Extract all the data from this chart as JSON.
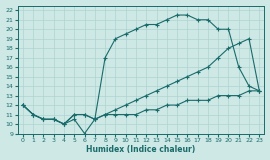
{
  "xlabel": "Humidex (Indice chaleur)",
  "bg_color": "#cde8e5",
  "line_color": "#1a6b6b",
  "grid_color": "#aed4d0",
  "xlim": [
    -0.5,
    23.5
  ],
  "ylim": [
    9,
    22.5
  ],
  "xticks": [
    0,
    1,
    2,
    3,
    4,
    5,
    6,
    7,
    8,
    9,
    10,
    11,
    12,
    13,
    14,
    15,
    16,
    17,
    18,
    19,
    20,
    21,
    22,
    23
  ],
  "yticks": [
    9,
    10,
    11,
    12,
    13,
    14,
    15,
    16,
    17,
    18,
    19,
    20,
    21,
    22
  ],
  "line1_x": [
    0,
    1,
    2,
    3,
    4,
    5,
    6,
    7,
    8,
    9,
    10,
    11,
    12,
    13,
    14,
    15,
    16,
    17,
    18,
    19,
    20,
    21,
    22,
    23
  ],
  "line1_y": [
    12,
    11,
    10.5,
    10.5,
    10,
    10.5,
    9,
    10.5,
    11,
    11.5,
    12,
    12.5,
    13,
    13.5,
    14,
    14.5,
    15,
    15.5,
    16,
    17,
    18,
    18.5,
    19,
    13.5
  ],
  "line2_x": [
    0,
    1,
    2,
    3,
    4,
    5,
    6,
    7,
    8,
    9,
    10,
    11,
    12,
    13,
    14,
    15,
    16,
    17,
    18,
    19,
    20,
    21,
    22,
    23
  ],
  "line2_y": [
    12,
    11,
    10.5,
    10.5,
    10,
    11,
    11,
    10.5,
    17,
    19,
    19.5,
    20,
    20.5,
    20.5,
    21,
    21.5,
    21.5,
    21,
    21,
    20,
    20,
    16,
    14,
    13.5
  ],
  "line3_x": [
    0,
    1,
    2,
    3,
    4,
    5,
    6,
    7,
    8,
    9,
    10,
    11,
    12,
    13,
    14,
    15,
    16,
    17,
    18,
    19,
    20,
    21,
    22,
    23
  ],
  "line3_y": [
    12,
    11,
    10.5,
    10.5,
    10,
    11,
    11,
    10.5,
    11,
    11,
    11,
    11,
    11.5,
    11.5,
    12,
    12,
    12.5,
    12.5,
    12.5,
    13,
    13,
    13,
    13.5,
    13.5
  ]
}
